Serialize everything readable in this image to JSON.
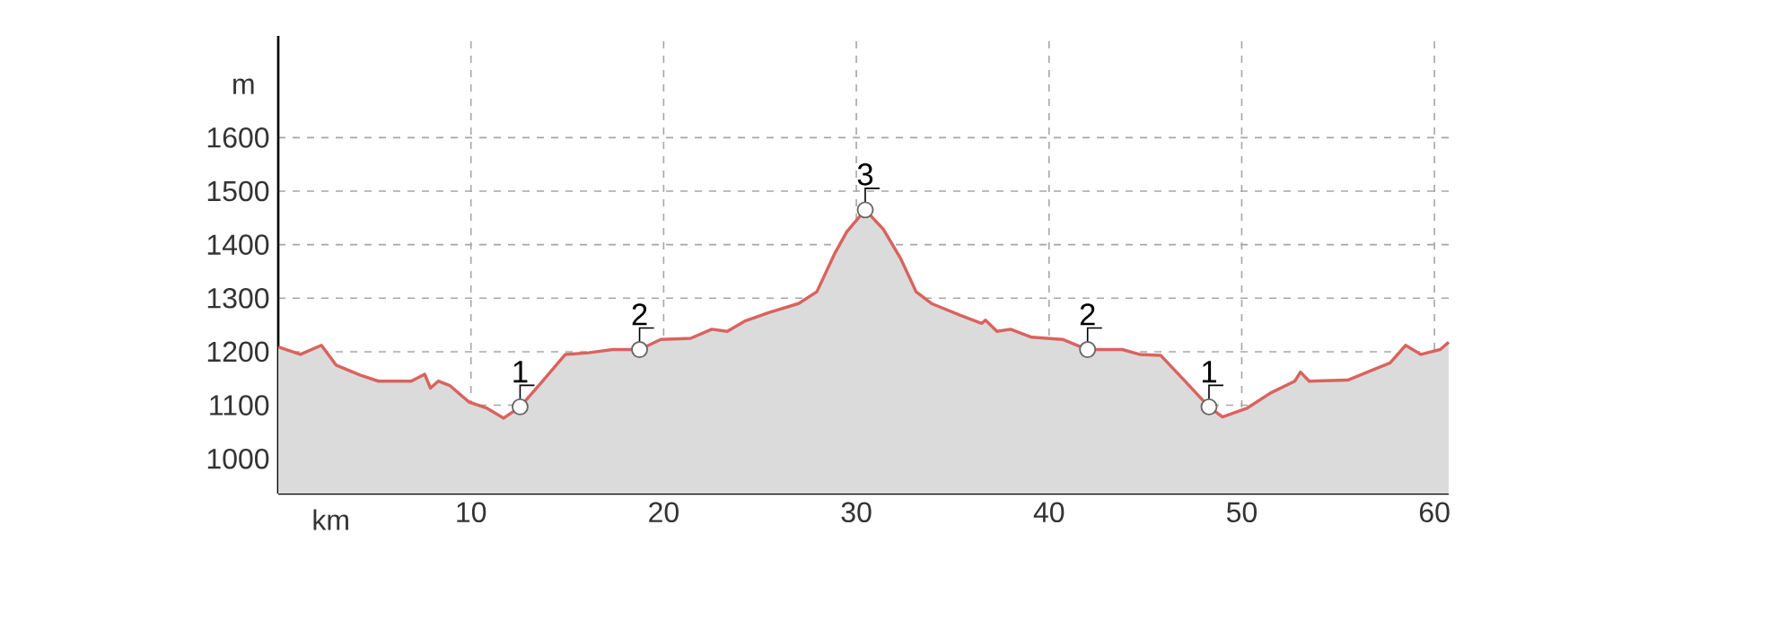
{
  "chart_data": {
    "type": "area",
    "xlabel": "km",
    "ylabel": "m",
    "x": [
      0,
      1.15,
      2.24,
      3.0,
      4.27,
      5.2,
      6.9,
      7.6,
      7.9,
      8.3,
      8.9,
      9.9,
      10.8,
      11.7,
      12.55,
      13.6,
      14.9,
      16.1,
      17.35,
      18.75,
      19.85,
      21.4,
      22.5,
      23.3,
      24.2,
      25.45,
      27.0,
      27.95,
      28.9,
      29.5,
      30.46,
      31.4,
      32.3,
      33.1,
      33.9,
      35.4,
      36.5,
      36.7,
      37.3,
      38.0,
      39.1,
      40.7,
      42.0,
      43.8,
      44.7,
      45.8,
      46.9,
      48.3,
      49.0,
      50.3,
      51.5,
      52.75,
      53.05,
      53.5,
      55.5,
      57.7,
      58.5,
      59.3,
      60.3,
      60.74
    ],
    "series": [
      {
        "color": "#d9635f",
        "values": [
          1209,
          1195,
          1212,
          1175,
          1156,
          1145,
          1145,
          1158,
          1132,
          1145,
          1137,
          1106,
          1095,
          1076,
          1097,
          1140,
          1195,
          1198,
          1204,
          1204,
          1223,
          1225,
          1242,
          1238,
          1257,
          1273,
          1290,
          1312,
          1385,
          1424,
          1465,
          1429,
          1374,
          1312,
          1290,
          1268,
          1253,
          1259,
          1238,
          1242,
          1227,
          1223,
          1204,
          1204,
          1195,
          1193,
          1151,
          1097,
          1078,
          1095,
          1123,
          1145,
          1162,
          1145,
          1147,
          1179,
          1212,
          1195,
          1204,
          1218
        ]
      }
    ],
    "xlim": [
      0,
      60.74
    ],
    "ylim": [
      935,
      1790
    ],
    "xticks": [
      10,
      20,
      30,
      40,
      50,
      60
    ],
    "yticks": [
      1000,
      1100,
      1200,
      1300,
      1400,
      1500,
      1600
    ],
    "grid": true,
    "annotations": [
      {
        "text": "1",
        "x": 12.55,
        "y": 1097
      },
      {
        "text": "2",
        "x": 18.75,
        "y": 1204
      },
      {
        "text": "3",
        "x": 30.46,
        "y": 1465
      },
      {
        "text": "2",
        "x": 42.0,
        "y": 1204
      },
      {
        "text": "1",
        "x": 48.3,
        "y": 1097
      }
    ]
  }
}
